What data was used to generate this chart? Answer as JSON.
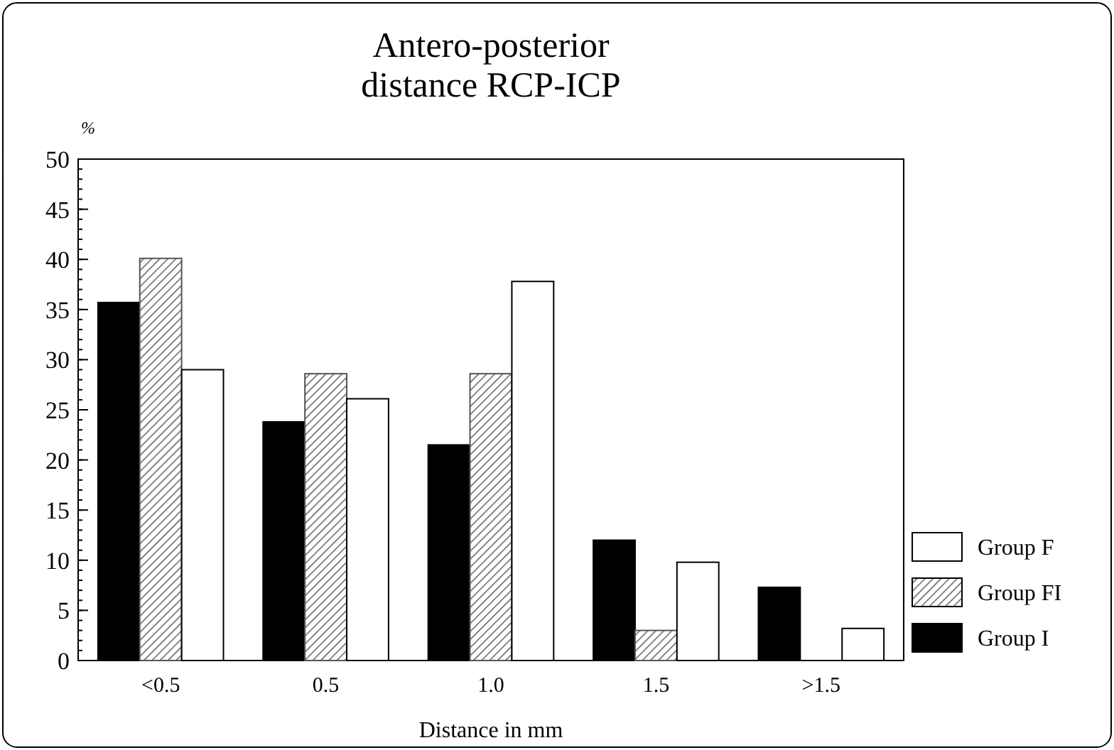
{
  "chart_data": {
    "type": "bar",
    "title": "Antero-posterior\ndistance RCP-ICP",
    "xlabel": "Distance in mm",
    "ylabel": "%",
    "categories": [
      "<0.5",
      "0.5",
      "1.0",
      "1.5",
      ">1.5"
    ],
    "series": [
      {
        "name": "Group I",
        "color": "#000000",
        "values": [
          35.7,
          23.8,
          21.5,
          12.0,
          7.3
        ]
      },
      {
        "name": "Group FI",
        "color": "#555555",
        "values": [
          40.1,
          28.6,
          28.6,
          3.0,
          0
        ]
      },
      {
        "name": "Group F",
        "color": "#ffffff",
        "values": [
          29.0,
          26.1,
          37.8,
          9.8,
          3.2
        ]
      }
    ],
    "ylim": [
      0,
      50
    ],
    "yticks": [
      0,
      5,
      10,
      15,
      20,
      25,
      30,
      35,
      40,
      45,
      50
    ],
    "grid": false,
    "legend": "bottom right"
  }
}
